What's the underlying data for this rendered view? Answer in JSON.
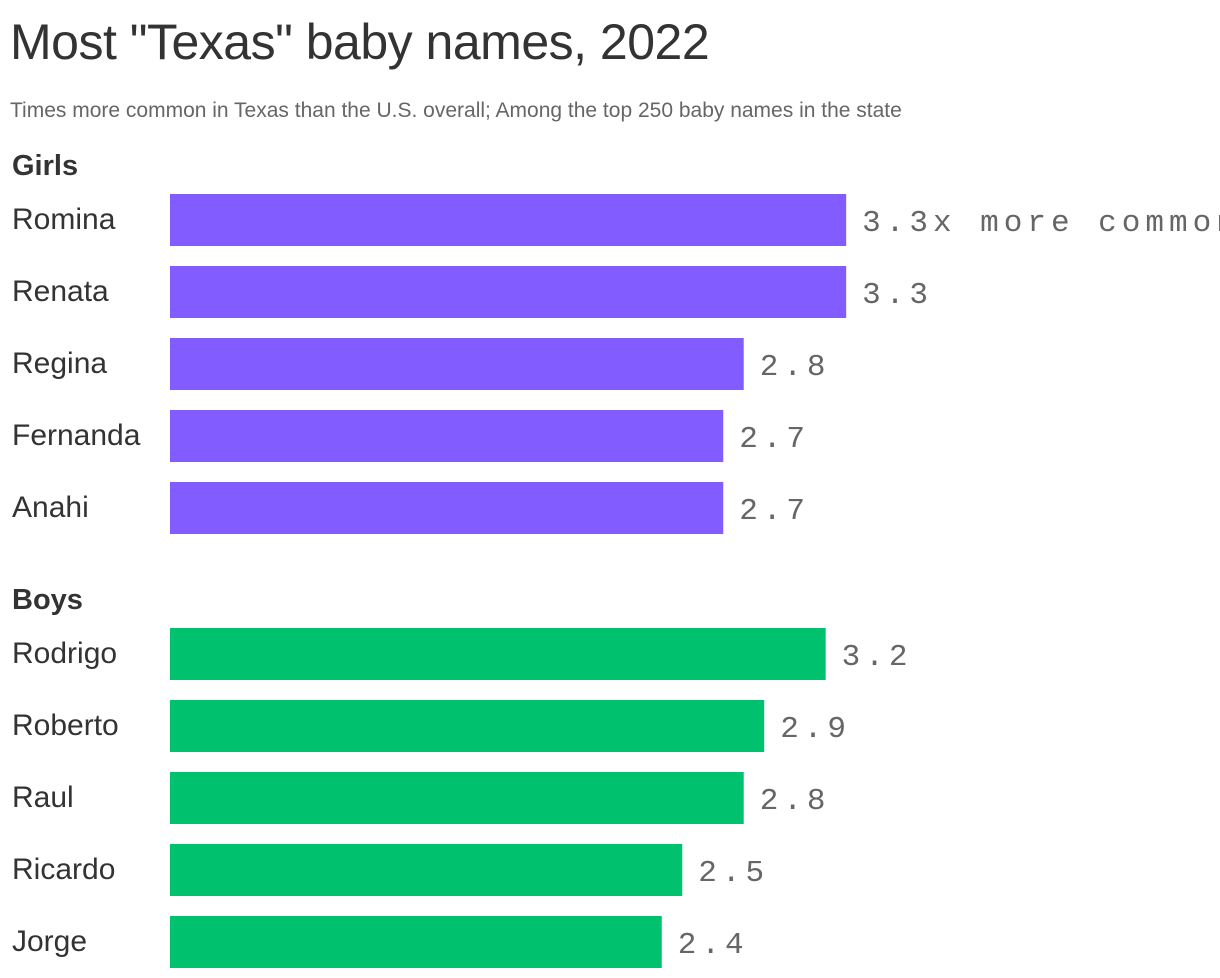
{
  "title": "Most \"Texas\" baby names, 2022",
  "subtitle": "Times more common in Texas than the U.S. overall; Among the top 250 baby names in the state",
  "colors": {
    "girls": "#835cff",
    "boys": "#00c26e"
  },
  "chart_data": {
    "type": "bar",
    "orientation": "horizontal",
    "first_value_suffix": "x more common",
    "groups": [
      {
        "name": "Girls",
        "color_key": "girls",
        "categories": [
          "Romina",
          "Renata",
          "Regina",
          "Fernanda",
          "Anahi"
        ],
        "values": [
          3.3,
          3.3,
          2.8,
          2.7,
          2.7
        ]
      },
      {
        "name": "Boys",
        "color_key": "boys",
        "categories": [
          "Rodrigo",
          "Roberto",
          "Raul",
          "Ricardo",
          "Jorge"
        ],
        "values": [
          3.2,
          2.9,
          2.8,
          2.5,
          2.4
        ]
      }
    ]
  }
}
